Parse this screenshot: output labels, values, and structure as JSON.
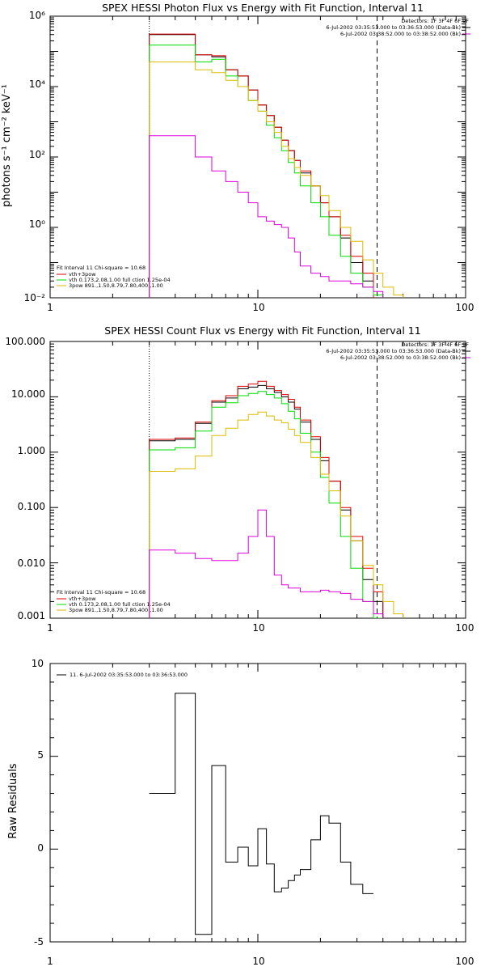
{
  "chart_data": [
    {
      "type": "line",
      "step": true,
      "title": "SPEX HESSI Photon Flux vs Energy with Fit Function, Interval 11",
      "xlabel": "",
      "ylabel": "photons s⁻¹ cm⁻² keV⁻¹",
      "xscale": "log",
      "yscale": "log",
      "xlim": [
        1,
        100
      ],
      "ylim": [
        0.01,
        1000000
      ],
      "x_ticks": [
        1,
        10,
        100
      ],
      "x_tick_labels": [
        "1",
        "10",
        "100"
      ],
      "y_ticks": [
        0.01,
        1,
        100,
        10000,
        1000000
      ],
      "y_tick_labels": [
        "10⁻²",
        "10⁰",
        "10²",
        "10⁴",
        "10⁶"
      ],
      "vlines": [
        {
          "x": 3,
          "style": "dotted",
          "color": "#000000"
        },
        {
          "x": 37.5,
          "style": "dashed",
          "color": "#000000"
        }
      ],
      "bin_edges": [
        3,
        4,
        5,
        6,
        7,
        8,
        9,
        10,
        11,
        12,
        13,
        14,
        15,
        16,
        18,
        20,
        22,
        25,
        28,
        32,
        36,
        40,
        45,
        50
      ],
      "series": [
        {
          "color": "#000000",
          "values": [
            300000,
            300000,
            80000,
            70000,
            30000,
            20000,
            8000,
            3000,
            1500,
            700,
            300,
            150,
            80,
            35,
            15,
            5,
            2,
            0.5,
            0.1,
            0.03,
            0.01,
            null,
            null
          ]
        },
        {
          "color": "#dd0000",
          "values": [
            310000,
            310000,
            80000,
            75000,
            30000,
            20000,
            8000,
            3000,
            1500,
            700,
            300,
            150,
            80,
            40,
            15,
            5,
            2,
            0.6,
            0.15,
            0.05,
            null,
            null,
            null
          ]
        },
        {
          "color": "#00dd00",
          "values": [
            150000,
            150000,
            50000,
            60000,
            20000,
            10000,
            4000,
            2000,
            800,
            350,
            150,
            70,
            35,
            15,
            5,
            2,
            0.6,
            0.15,
            0.05,
            0.02,
            0.012,
            null,
            null
          ]
        },
        {
          "color": "#ddbb00",
          "values": [
            50000,
            50000,
            30000,
            25000,
            15000,
            10000,
            4000,
            2000,
            1000,
            500,
            200,
            90,
            50,
            30,
            15,
            8,
            3,
            1,
            0.4,
            0.12,
            0.05,
            0.02,
            0.012
          ]
        },
        {
          "color": "#dd00dd",
          "values": [
            400,
            400,
            100,
            40,
            20,
            10,
            5,
            2,
            1.5,
            1.2,
            1,
            0.5,
            0.2,
            0.08,
            0.05,
            0.04,
            0.03,
            0.03,
            0.025,
            0.02,
            0.015,
            null,
            null
          ]
        }
      ],
      "legend_top_right": {
        "detectors": "Detectors: 1F 3F 4F 6F 9F",
        "entries": [
          {
            "text": "6-Jul-2002 03:35:53.000 to 03:36:53.000 (Data-Bk)",
            "color": "#000000"
          },
          {
            "text": "6-Jul-2002 03:38:52.000 to 03:38:52.000 (Bk)",
            "color": "#dd00dd"
          }
        ]
      },
      "legend_bottom_left": {
        "header": "Fit Interval 11   Chi-square = 10.68",
        "entries": [
          {
            "text": "vth+3pow",
            "color": "#dd0000"
          },
          {
            "text": "vth 0.173,2.08,1.00  full ction 1.25e-04",
            "color": "#00dd00"
          },
          {
            "text": "3pow 891.,1.50,8.79,7.80,400.,1.00",
            "color": "#ddbb00"
          }
        ]
      }
    },
    {
      "type": "line",
      "step": true,
      "title": "SPEX HESSI Count Flux vs Energy with Fit Function, Interval 11",
      "xlabel": "",
      "ylabel": "",
      "xscale": "log",
      "yscale": "log",
      "xlim": [
        1,
        100
      ],
      "ylim": [
        0.001,
        100
      ],
      "x_ticks": [
        1,
        10,
        100
      ],
      "x_tick_labels": [
        "1",
        "10",
        "100"
      ],
      "y_ticks": [
        0.001,
        0.01,
        0.1,
        1,
        10,
        100
      ],
      "y_tick_labels": [
        "0.001",
        "0.010",
        "0.100",
        "1.000",
        "10.000",
        "100.000"
      ],
      "vlines": [
        {
          "x": 3,
          "style": "dotted",
          "color": "#000000"
        },
        {
          "x": 37.5,
          "style": "dashed",
          "color": "#000000"
        }
      ],
      "bin_edges": [
        3,
        4,
        5,
        6,
        7,
        8,
        9,
        10,
        11,
        12,
        13,
        14,
        15,
        16,
        18,
        20,
        22,
        25,
        28,
        32,
        36,
        40,
        45,
        50
      ],
      "series": [
        {
          "color": "#000000",
          "values": [
            1.6,
            1.7,
            3.3,
            8,
            9.5,
            14,
            15,
            16,
            14,
            12,
            10,
            8,
            6,
            3.5,
            1.7,
            0.7,
            0.3,
            0.09,
            0.025,
            0.005,
            0.002,
            null,
            null
          ]
        },
        {
          "color": "#dd0000",
          "values": [
            1.7,
            1.8,
            3.5,
            8.5,
            10.5,
            15.5,
            17,
            19,
            15.5,
            13,
            11,
            9,
            6.5,
            3.8,
            1.9,
            0.8,
            0.3,
            0.1,
            0.03,
            0.008,
            0.003,
            null,
            null
          ]
        },
        {
          "color": "#00dd00",
          "values": [
            1.1,
            1.2,
            2.4,
            6.5,
            7.8,
            10.5,
            11.5,
            12.5,
            11,
            9.5,
            7.5,
            5.5,
            4,
            2.2,
            1,
            0.35,
            0.12,
            0.03,
            0.008,
            0.002,
            0.001,
            null,
            null
          ]
        },
        {
          "color": "#ddbb00",
          "values": [
            0.45,
            0.5,
            0.85,
            2,
            2.7,
            3.8,
            4.8,
            5.3,
            4.5,
            3.8,
            3.4,
            2.6,
            2,
            1.5,
            0.8,
            0.4,
            0.2,
            0.07,
            0.025,
            0.009,
            0.004,
            0.002,
            0.0012
          ]
        },
        {
          "color": "#dd00dd",
          "values": [
            0.017,
            0.015,
            0.012,
            0.011,
            0.011,
            0.015,
            0.03,
            0.09,
            0.03,
            0.006,
            0.004,
            0.0035,
            0.0035,
            0.003,
            0.003,
            0.0032,
            0.003,
            0.0028,
            0.0022,
            0.002,
            0.0012,
            null,
            null
          ]
        }
      ],
      "legend_top_right": {
        "detectors": "Detectors: 1F 3F 4F 6F 9F",
        "entries": [
          {
            "text": "6-Jul-2002 03:35:53.000 to 03:36:53.000 (Data-Bk)",
            "color": "#000000"
          },
          {
            "text": "6-Jul-2002 03:38:52.000 to 03:38:52.000 (Bk)",
            "color": "#dd00dd"
          }
        ]
      },
      "legend_bottom_left": {
        "header": "Fit Interval 11   Chi-square = 10.68",
        "entries": [
          {
            "text": "vth+3pow",
            "color": "#dd0000"
          },
          {
            "text": "vth 0.173,2.08,1.00  full ction 1.25e-04",
            "color": "#00dd00"
          },
          {
            "text": "3pow 891.,1.50,8.79,7.80,400.,1.00",
            "color": "#ddbb00"
          }
        ]
      }
    },
    {
      "type": "line",
      "step": true,
      "title": "",
      "xlabel": "",
      "ylabel": "Raw Residuals",
      "xscale": "log",
      "yscale": "linear",
      "xlim": [
        1,
        100
      ],
      "ylim": [
        -5,
        10
      ],
      "x_ticks": [
        1,
        10,
        100
      ],
      "x_tick_labels": [
        "1",
        "10",
        "100"
      ],
      "y_ticks": [
        -5,
        0,
        5,
        10
      ],
      "y_tick_labels": [
        "-5",
        "0",
        "5",
        "10"
      ],
      "vlines": [],
      "bin_edges": [
        3,
        4,
        5,
        6,
        7,
        8,
        9,
        10,
        11,
        12,
        13,
        14,
        15,
        16,
        18,
        20,
        22,
        25,
        28,
        32,
        36,
        40,
        45,
        50
      ],
      "series": [
        {
          "color": "#000000",
          "values": [
            3,
            8.4,
            -4.6,
            4.5,
            -0.7,
            0.1,
            -0.9,
            1.1,
            -0.8,
            -2.3,
            -2.1,
            -1.7,
            -1.4,
            -1.1,
            0.5,
            1.8,
            1.4,
            -0.7,
            -1.9,
            -2.4,
            null,
            null,
            null
          ]
        }
      ],
      "legend_top_left": {
        "entries": [
          {
            "text": "11.  6-Jul-2002 03:35:53.000 to 03:36:53.000",
            "color": "#000000"
          }
        ]
      }
    }
  ]
}
